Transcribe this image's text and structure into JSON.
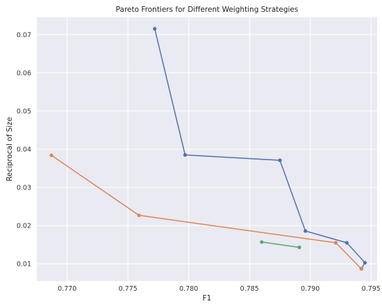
{
  "chart_data": {
    "type": "line",
    "title": "Pareto Frontiers for Different Weighting Strategies",
    "xlabel": "F1",
    "ylabel": "Reciprocal of Size",
    "xlim": [
      0.7675,
      0.7955
    ],
    "ylim": [
      0.0055,
      0.0745
    ],
    "x_ticks": [
      0.77,
      0.775,
      0.78,
      0.785,
      0.79,
      0.795
    ],
    "x_tick_labels": [
      "0.770",
      "0.775",
      "0.780",
      "0.785",
      "0.790",
      "0.795"
    ],
    "y_ticks": [
      0.01,
      0.02,
      0.03,
      0.04,
      0.05,
      0.06,
      0.07
    ],
    "y_tick_labels": [
      "0.01",
      "0.02",
      "0.03",
      "0.04",
      "0.05",
      "0.06",
      "0.07"
    ],
    "grid": true,
    "background": "#eaeaf2",
    "series": [
      {
        "color": "#4c72b0",
        "points": [
          [
            0.7772,
            0.0715
          ],
          [
            0.7797,
            0.0385
          ],
          [
            0.7875,
            0.0371
          ],
          [
            0.7896,
            0.0186
          ],
          [
            0.793,
            0.0155
          ],
          [
            0.7945,
            0.0103
          ],
          [
            0.7942,
            0.0087
          ]
        ]
      },
      {
        "color": "#dd8452",
        "points": [
          [
            0.7687,
            0.0384
          ],
          [
            0.7759,
            0.0227
          ],
          [
            0.7921,
            0.0155
          ],
          [
            0.7942,
            0.0087
          ]
        ]
      },
      {
        "color": "#55a868",
        "points": [
          [
            0.786,
            0.0157
          ],
          [
            0.7891,
            0.0143
          ]
        ]
      }
    ]
  }
}
